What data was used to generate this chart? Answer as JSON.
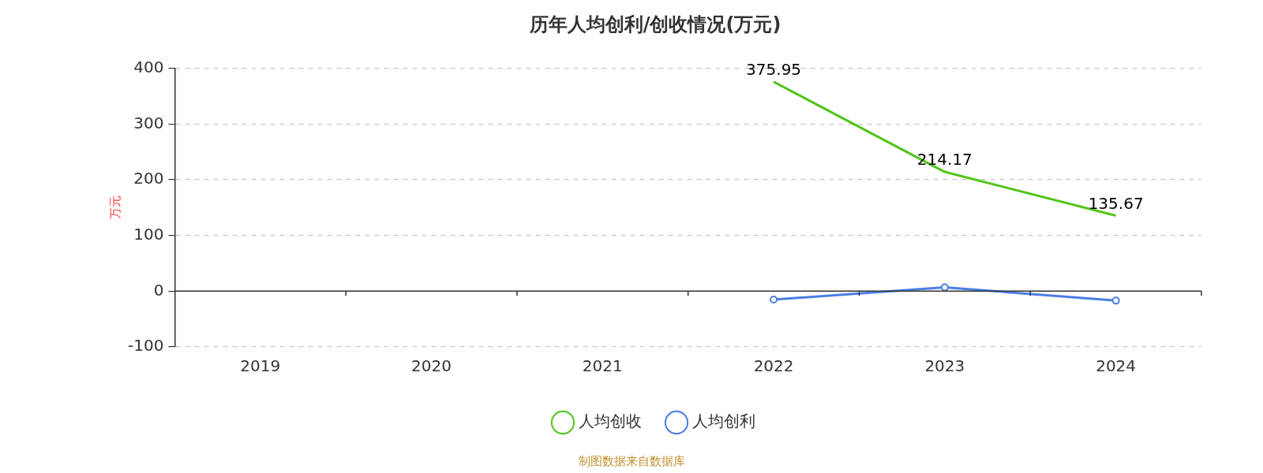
{
  "chart_data": {
    "type": "line",
    "title": "历年人均创利/创收情况(万元)",
    "ylabel": "万元",
    "categories": [
      "2019",
      "2020",
      "2021",
      "2022",
      "2023",
      "2024"
    ],
    "series": [
      {
        "name": "人均创收",
        "color": "#52c41a",
        "marker": "none",
        "values": [
          null,
          null,
          null,
          375.95,
          214.17,
          135.67
        ],
        "value_labels": [
          null,
          null,
          null,
          "375.95",
          "214.17",
          "135.67"
        ]
      },
      {
        "name": "人均创利",
        "color": "#4a7ee3",
        "marker": "circle",
        "values": [
          null,
          null,
          null,
          -15,
          7,
          -17
        ]
      }
    ],
    "ylim": [
      -100,
      400
    ],
    "yticks": [
      -100,
      0,
      100,
      200,
      300,
      400
    ],
    "grid": "y",
    "legend": "bottom",
    "line_style": "solid",
    "annotations": [
      "制图数据来自数据库"
    ]
  }
}
